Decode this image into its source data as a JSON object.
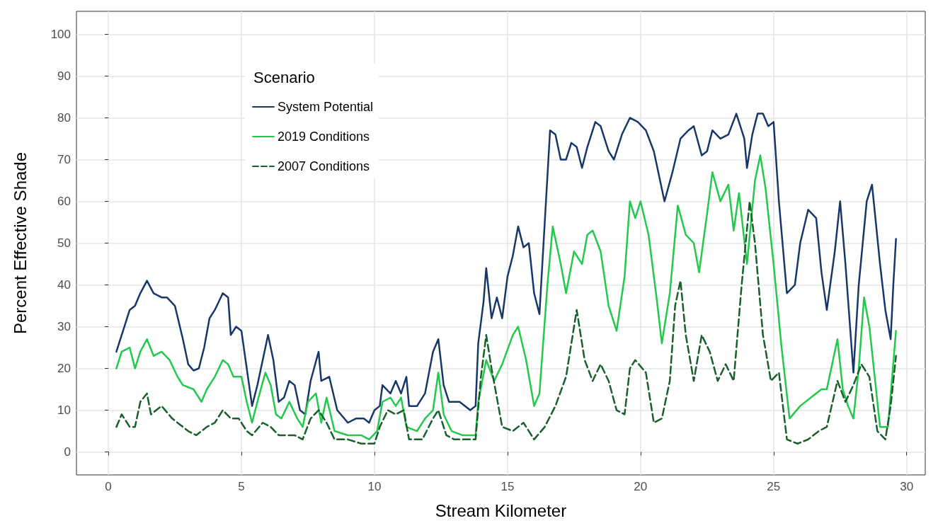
{
  "chart_data": {
    "type": "line",
    "xlabel": "Stream Kilometer",
    "ylabel": "Percent Effective Shade",
    "legend_title": "Scenario",
    "legend": "top left",
    "grid": true,
    "xlim": [
      -1.2,
      30.7
    ],
    "ylim": [
      -5.5,
      105.5
    ],
    "xticks": [
      0,
      5,
      10,
      15,
      20,
      25,
      30
    ],
    "yticks": [
      0,
      10,
      20,
      30,
      40,
      50,
      60,
      70,
      80,
      90,
      100
    ],
    "series": [
      {
        "name": "System Potential",
        "color": "#17376b",
        "line_style": "solid",
        "x": [
          0.3,
          0.6,
          0.8,
          1.0,
          1.2,
          1.45,
          1.7,
          2.0,
          2.2,
          2.5,
          2.8,
          3.0,
          3.2,
          3.4,
          3.6,
          3.8,
          4.0,
          4.3,
          4.5,
          4.6,
          4.8,
          5.0,
          5.2,
          5.4,
          5.6,
          5.8,
          6.0,
          6.2,
          6.4,
          6.6,
          6.8,
          7.0,
          7.2,
          7.4,
          7.6,
          7.9,
          8.0,
          8.3,
          8.6,
          9.0,
          9.3,
          9.6,
          9.8,
          10.0,
          10.2,
          10.3,
          10.6,
          10.8,
          11.0,
          11.2,
          11.3,
          11.6,
          11.9,
          12.2,
          12.4,
          12.6,
          12.8,
          13.2,
          13.6,
          13.8,
          13.9,
          14.1,
          14.2,
          14.4,
          14.6,
          14.8,
          15.0,
          15.2,
          15.4,
          15.6,
          15.8,
          16.0,
          16.2,
          16.4,
          16.6,
          16.8,
          17.0,
          17.2,
          17.4,
          17.6,
          17.8,
          18.0,
          18.3,
          18.5,
          18.8,
          19.0,
          19.3,
          19.6,
          19.9,
          20.2,
          20.5,
          20.9,
          21.2,
          21.5,
          21.8,
          22.0,
          22.3,
          22.5,
          22.7,
          23.0,
          23.3,
          23.6,
          23.9,
          24.0,
          24.2,
          24.4,
          24.6,
          24.8,
          25.0,
          25.2,
          25.5,
          25.8,
          26.0,
          26.3,
          26.6,
          26.8,
          27.0,
          27.3,
          27.5,
          27.7,
          28.0,
          28.2,
          28.5,
          28.7,
          29.0,
          29.2,
          29.4,
          29.5,
          29.6
        ],
        "values": [
          24,
          30,
          34,
          35,
          38,
          41,
          38,
          37,
          37,
          35,
          27,
          21,
          19.5,
          20,
          25,
          32,
          34,
          38,
          37,
          28,
          30,
          29,
          20,
          11,
          16,
          22,
          28,
          22,
          12,
          13,
          17,
          16,
          10,
          9,
          17,
          24,
          17,
          18,
          10,
          7,
          8,
          8,
          7,
          10,
          11,
          16,
          14,
          17,
          14,
          18,
          11,
          11,
          14,
          24,
          27,
          16,
          12,
          12,
          10,
          11,
          26,
          36,
          44,
          32,
          37,
          32,
          42,
          47,
          54,
          49,
          50,
          38,
          33,
          55,
          77,
          76,
          70,
          70,
          74,
          73,
          68,
          73,
          79,
          78,
          72,
          70,
          76,
          80,
          79,
          77,
          72,
          60,
          67,
          75,
          77,
          78,
          71,
          72,
          77,
          75,
          76,
          81,
          75,
          68,
          76,
          81,
          81,
          78,
          79,
          60,
          38,
          40,
          50,
          58,
          56,
          43,
          34,
          48,
          60,
          45,
          19,
          40,
          60,
          64,
          45,
          34,
          27,
          40,
          51
        ]
      },
      {
        "name": "2019 Conditions",
        "color": "#22c94a",
        "line_style": "solid",
        "x": [
          0.3,
          0.5,
          0.8,
          1.0,
          1.2,
          1.45,
          1.7,
          2.0,
          2.3,
          2.6,
          2.8,
          3.2,
          3.5,
          3.7,
          4.0,
          4.3,
          4.5,
          4.7,
          5.0,
          5.2,
          5.4,
          5.6,
          5.9,
          6.1,
          6.3,
          6.5,
          6.8,
          7.1,
          7.3,
          7.5,
          7.8,
          8.0,
          8.2,
          8.5,
          9.0,
          9.5,
          9.8,
          10.1,
          10.3,
          10.6,
          10.8,
          11.0,
          11.2,
          11.6,
          11.9,
          12.2,
          12.4,
          12.6,
          12.9,
          13.3,
          13.8,
          13.9,
          14.2,
          14.5,
          14.8,
          15.2,
          15.4,
          15.7,
          16.0,
          16.2,
          16.5,
          16.7,
          17.0,
          17.2,
          17.5,
          17.8,
          18.0,
          18.2,
          18.5,
          18.8,
          19.1,
          19.4,
          19.6,
          19.8,
          20.0,
          20.3,
          20.6,
          20.8,
          21.1,
          21.4,
          21.7,
          22.0,
          22.2,
          22.5,
          22.7,
          23.0,
          23.3,
          23.5,
          23.7,
          24.0,
          24.3,
          24.5,
          24.7,
          25.0,
          25.3,
          25.6,
          26.0,
          26.4,
          26.8,
          27.0,
          27.2,
          27.4,
          27.6,
          27.8,
          28.0,
          28.2,
          28.4,
          28.6,
          28.8,
          29.0,
          29.3,
          29.6
        ],
        "values": [
          20,
          24,
          25,
          20,
          24,
          27,
          23,
          24,
          22,
          18,
          16,
          15,
          12,
          15,
          18,
          22,
          21,
          18,
          18,
          12,
          7,
          12,
          19,
          16,
          9,
          8,
          12,
          8,
          6,
          12,
          14,
          7,
          13,
          5,
          4,
          4,
          3,
          5,
          12,
          13,
          11,
          13,
          6,
          5,
          8,
          10,
          19,
          9,
          5,
          4,
          4,
          12,
          22,
          17,
          21,
          28,
          30,
          22,
          11,
          14,
          40,
          54,
          45,
          38,
          48,
          45,
          52,
          53,
          48,
          35,
          29,
          42,
          60,
          56,
          60,
          52,
          37,
          26,
          38,
          59,
          52,
          50,
          43,
          57,
          67,
          60,
          64,
          53,
          62,
          45,
          65,
          71,
          63,
          45,
          25,
          8,
          11,
          13,
          15,
          15,
          21,
          27,
          15,
          11,
          8,
          20,
          37,
          30,
          18,
          6,
          6,
          29
        ]
      },
      {
        "name": "2007 Conditions",
        "color": "#17602b",
        "line_style": "dashed",
        "x": [
          0.3,
          0.5,
          0.8,
          1.0,
          1.2,
          1.45,
          1.6,
          2.0,
          2.4,
          3.0,
          3.3,
          3.7,
          4.0,
          4.3,
          4.6,
          4.9,
          5.2,
          5.4,
          5.8,
          6.1,
          6.4,
          7.0,
          7.3,
          7.6,
          7.9,
          8.2,
          8.5,
          9.0,
          9.5,
          10.0,
          10.2,
          10.5,
          10.8,
          11.1,
          11.3,
          11.8,
          12.2,
          12.4,
          12.7,
          13.0,
          13.5,
          13.8,
          14.0,
          14.2,
          14.4,
          14.6,
          14.8,
          15.2,
          15.6,
          16.0,
          16.4,
          16.8,
          17.2,
          17.6,
          17.9,
          18.2,
          18.5,
          18.8,
          19.1,
          19.4,
          19.6,
          19.8,
          20.2,
          20.5,
          20.8,
          21.1,
          21.3,
          21.5,
          21.7,
          22.0,
          22.3,
          22.6,
          22.9,
          23.2,
          23.5,
          23.8,
          24.1,
          24.3,
          24.6,
          24.9,
          25.2,
          25.5,
          25.9,
          26.3,
          26.7,
          27.0,
          27.4,
          27.7,
          28.0,
          28.3,
          28.6,
          28.9,
          29.2,
          29.4,
          29.6
        ],
        "values": [
          6,
          9,
          6,
          6,
          12,
          14,
          9,
          11,
          8,
          5,
          4,
          6,
          7,
          10,
          8,
          8,
          5,
          4,
          7,
          6,
          4,
          4,
          3,
          8,
          10,
          7,
          3,
          3,
          2,
          2,
          6,
          10,
          9,
          10,
          3,
          3,
          8,
          10,
          4,
          3,
          3,
          3,
          18,
          28,
          20,
          13,
          6,
          5,
          7,
          3,
          6,
          11,
          18,
          34,
          22,
          17,
          21,
          17,
          10,
          9,
          20,
          22,
          19,
          7,
          8,
          17,
          35,
          41,
          28,
          17,
          28,
          24,
          17,
          21,
          17,
          40,
          60,
          50,
          28,
          17,
          19,
          3,
          2,
          3,
          5,
          6,
          17,
          12,
          16,
          21,
          18,
          5,
          3,
          11,
          23
        ]
      }
    ]
  }
}
